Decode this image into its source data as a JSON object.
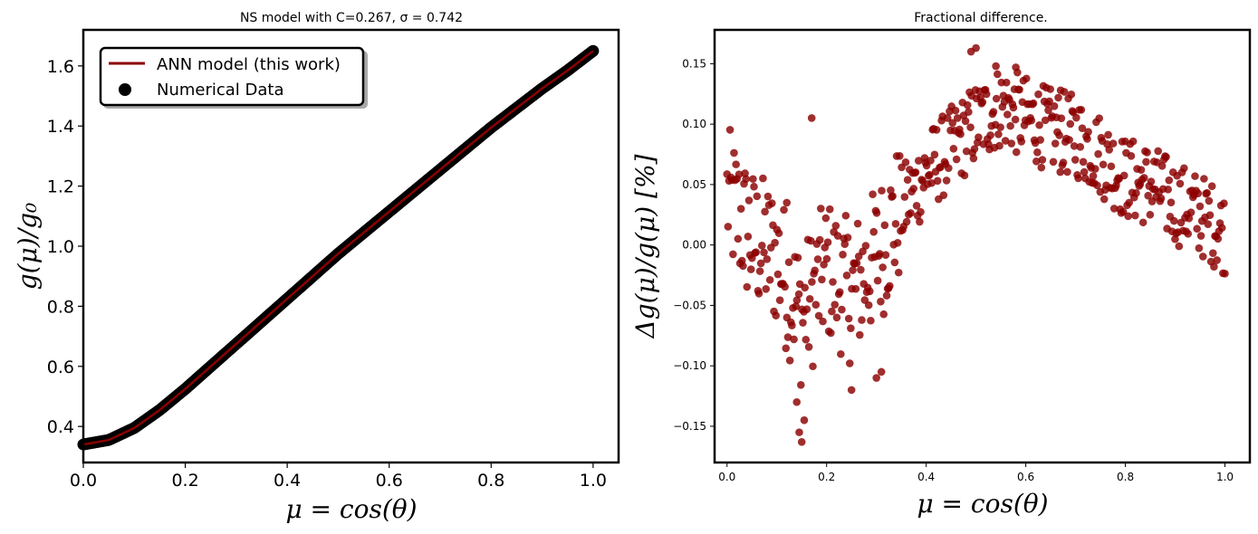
{
  "figure": {
    "left_title": "NS model with C=0.267, σ = 0.742",
    "right_title": "Fractional difference."
  },
  "chart_data": [
    {
      "type": "line",
      "title": "NS model with C=0.267, σ = 0.742",
      "xlabel": "μ = cos(θ)",
      "ylabel": "g(μ)/g0",
      "xlim": [
        0.0,
        1.05
      ],
      "ylim": [
        0.28,
        1.72
      ],
      "xticks": [
        "0.0",
        "0.2",
        "0.4",
        "0.6",
        "0.8",
        "1.0"
      ],
      "yticks": [
        "0.4",
        "0.6",
        "0.8",
        "1.0",
        "1.2",
        "1.4",
        "1.6"
      ],
      "grid": false,
      "legend_position": "top-left",
      "legend": [
        "ANN model (this work)",
        "Numerical Data"
      ],
      "series": [
        {
          "name": "ANN model (this work)",
          "kind": "line",
          "color": "#8b0000",
          "x": [
            0.0,
            0.05,
            0.1,
            0.15,
            0.2,
            0.25,
            0.3,
            0.35,
            0.4,
            0.45,
            0.5,
            0.55,
            0.6,
            0.65,
            0.7,
            0.75,
            0.8,
            0.85,
            0.9,
            0.95,
            1.0
          ],
          "y": [
            0.34,
            0.355,
            0.395,
            0.455,
            0.525,
            0.6,
            0.675,
            0.75,
            0.825,
            0.9,
            0.975,
            1.045,
            1.115,
            1.185,
            1.255,
            1.325,
            1.395,
            1.46,
            1.525,
            1.585,
            1.65
          ]
        },
        {
          "name": "Numerical Data",
          "kind": "scatter",
          "color": "#000000",
          "x": [
            0.0,
            0.05,
            0.1,
            0.15,
            0.2,
            0.25,
            0.3,
            0.35,
            0.4,
            0.45,
            0.5,
            0.55,
            0.6,
            0.65,
            0.7,
            0.75,
            0.8,
            0.85,
            0.9,
            0.95,
            1.0
          ],
          "y": [
            0.34,
            0.355,
            0.395,
            0.455,
            0.525,
            0.6,
            0.675,
            0.75,
            0.825,
            0.9,
            0.975,
            1.045,
            1.115,
            1.185,
            1.255,
            1.325,
            1.395,
            1.46,
            1.525,
            1.585,
            1.65
          ]
        }
      ]
    },
    {
      "type": "scatter",
      "title": "Fractional difference.",
      "xlabel": "μ = cos(θ)",
      "ylabel": "Δg(μ)/g(μ) [%]",
      "xlim": [
        -0.025,
        1.05
      ],
      "ylim": [
        -0.18,
        0.178
      ],
      "xticks": [
        "0.0",
        "0.2",
        "0.4",
        "0.6",
        "0.8",
        "1.0"
      ],
      "yticks": [
        "−0.15",
        "−0.10",
        "−0.05",
        "0.00",
        "0.05",
        "0.10",
        "0.15"
      ],
      "grid": false,
      "color": "#8b0000",
      "trend": {
        "x": [
          0.0,
          0.05,
          0.1,
          0.15,
          0.2,
          0.25,
          0.3,
          0.35,
          0.4,
          0.45,
          0.5,
          0.55,
          0.6,
          0.65,
          0.7,
          0.75,
          0.8,
          0.85,
          0.9,
          0.95,
          1.0
        ],
        "y": [
          0.04,
          0.005,
          -0.01,
          -0.06,
          -0.02,
          -0.04,
          -0.01,
          0.03,
          0.06,
          0.08,
          0.1,
          0.115,
          0.105,
          0.095,
          0.09,
          0.075,
          0.055,
          0.05,
          0.035,
          0.025,
          0.01
        ]
      },
      "highlights": {
        "x": [
          0.49,
          0.5,
          0.54,
          0.58,
          0.67,
          0.14,
          0.145,
          0.15,
          0.155,
          0.25,
          0.3,
          0.31,
          0.17,
          0.12
        ],
        "y": [
          0.16,
          0.163,
          0.148,
          0.147,
          0.128,
          -0.13,
          -0.155,
          -0.163,
          -0.145,
          -0.12,
          -0.11,
          -0.105,
          0.105,
          0.035
        ]
      }
    }
  ]
}
